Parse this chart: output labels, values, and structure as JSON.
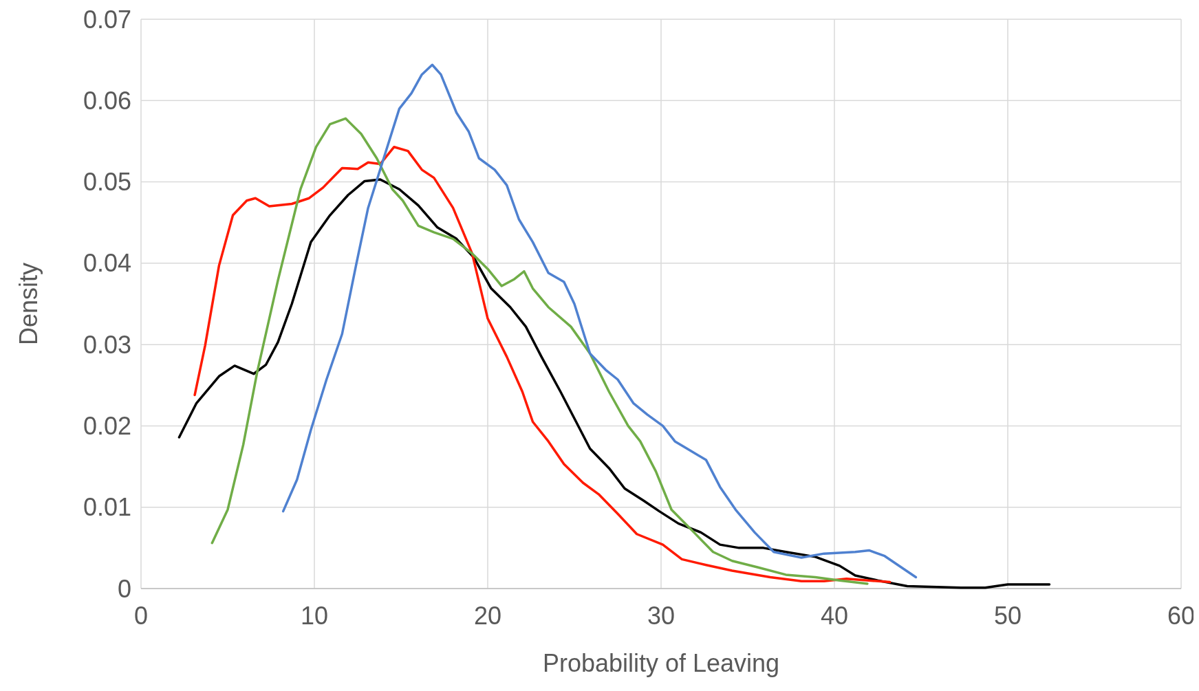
{
  "chart_data": {
    "type": "line",
    "xlabel": "Probability of Leaving",
    "ylabel": "Density",
    "xlim": [
      0,
      60
    ],
    "xticks": [
      0,
      10,
      20,
      30,
      40,
      50,
      60
    ],
    "ylim": [
      0,
      0.07
    ],
    "yticks": [
      0,
      0.01,
      0.02,
      0.03,
      0.04,
      0.05,
      0.06,
      0.07
    ],
    "grid": true,
    "marker": "none",
    "line_style": "solid",
    "series": [
      {
        "color": "#000000",
        "x": [
          2.2,
          3.2,
          4.5,
          5.4,
          6.5,
          7.2,
          7.9,
          8.7,
          9.8,
          10.9,
          11.95,
          12.9,
          13.8,
          14.9,
          16.0,
          17.1,
          18.2,
          19.2,
          20.2,
          21.3,
          22.2,
          23.1,
          24.2,
          25.1,
          25.9,
          27.0,
          27.9,
          29.0,
          29.9,
          31.0,
          32.3,
          33.4,
          34.5,
          35.9,
          37.2,
          38.9,
          40.3,
          41.2,
          42.5,
          44.2,
          47.3,
          48.7,
          50.0,
          52.4
        ],
        "values": [
          0.0186,
          0.0228,
          0.0261,
          0.0274,
          0.0264,
          0.0275,
          0.0303,
          0.035,
          0.0426,
          0.0459,
          0.0484,
          0.0501,
          0.0503,
          0.0491,
          0.0471,
          0.0444,
          0.043,
          0.0407,
          0.0369,
          0.0346,
          0.0322,
          0.0285,
          0.0242,
          0.0205,
          0.0172,
          0.0148,
          0.0123,
          0.0108,
          0.0095,
          0.008,
          0.0069,
          0.0054,
          0.005,
          0.005,
          0.0045,
          0.0039,
          0.0028,
          0.0016,
          0.001,
          0.0003,
          0.0001,
          0.0001,
          0.0005,
          0.0005
        ]
      },
      {
        "color": "#ff1a00",
        "x": [
          3.1,
          3.7,
          4.5,
          5.3,
          6.1,
          6.6,
          7.4,
          8.7,
          9.7,
          10.5,
          11.6,
          12.5,
          13.1,
          13.8,
          14.6,
          15.4,
          16.2,
          16.9,
          18.0,
          19.1,
          20.0,
          21.1,
          22.0,
          22.6,
          23.5,
          24.4,
          25.5,
          26.4,
          27.5,
          28.6,
          30.1,
          31.2,
          32.6,
          34.1,
          36.3,
          38.1,
          39.4,
          40.7,
          43.2
        ],
        "values": [
          0.0238,
          0.0299,
          0.0397,
          0.0459,
          0.0477,
          0.048,
          0.047,
          0.0473,
          0.048,
          0.0493,
          0.0517,
          0.0516,
          0.0524,
          0.0522,
          0.0543,
          0.0538,
          0.0515,
          0.0505,
          0.0468,
          0.0412,
          0.0332,
          0.0285,
          0.0242,
          0.0205,
          0.0181,
          0.0153,
          0.013,
          0.0116,
          0.0092,
          0.0067,
          0.0054,
          0.0036,
          0.0029,
          0.0022,
          0.0014,
          0.0009,
          0.0009,
          0.0012,
          0.0008
        ]
      },
      {
        "color": "#70ad47",
        "x": [
          4.1,
          5.0,
          5.9,
          6.7,
          7.9,
          9.2,
          10.1,
          10.9,
          11.8,
          12.7,
          13.6,
          14.5,
          15.1,
          16.0,
          16.9,
          18.0,
          19.1,
          20.0,
          20.8,
          21.5,
          22.1,
          22.6,
          23.5,
          24.8,
          25.9,
          27.0,
          28.1,
          28.8,
          29.7,
          30.6,
          31.9,
          33.0,
          34.1,
          35.6,
          37.2,
          38.9,
          40.3,
          41.9
        ],
        "values": [
          0.0056,
          0.0097,
          0.0177,
          0.0266,
          0.0379,
          0.0491,
          0.0543,
          0.0571,
          0.0578,
          0.0559,
          0.0529,
          0.0491,
          0.0477,
          0.0446,
          0.0438,
          0.043,
          0.0412,
          0.0393,
          0.0372,
          0.038,
          0.039,
          0.0369,
          0.0346,
          0.0322,
          0.0289,
          0.0242,
          0.02,
          0.0181,
          0.0144,
          0.0097,
          0.0069,
          0.0045,
          0.0034,
          0.0026,
          0.0017,
          0.0014,
          0.001,
          0.0006
        ]
      },
      {
        "color": "#4f81d0",
        "x": [
          8.2,
          9.0,
          9.8,
          10.7,
          11.6,
          12.4,
          13.1,
          14.0,
          14.9,
          15.6,
          16.2,
          16.8,
          17.3,
          18.2,
          18.9,
          19.5,
          20.4,
          21.1,
          21.8,
          22.6,
          23.5,
          24.4,
          25.0,
          25.9,
          26.8,
          27.5,
          28.4,
          29.2,
          30.1,
          30.8,
          31.5,
          32.6,
          33.4,
          34.3,
          35.4,
          36.5,
          38.1,
          39.4,
          41.2,
          42.0,
          42.9,
          44.7
        ],
        "values": [
          0.0095,
          0.0134,
          0.0195,
          0.0257,
          0.0313,
          0.0397,
          0.0468,
          0.0529,
          0.059,
          0.0609,
          0.0632,
          0.0644,
          0.0632,
          0.0585,
          0.0562,
          0.0529,
          0.0515,
          0.0496,
          0.0454,
          0.0426,
          0.0388,
          0.0377,
          0.035,
          0.0289,
          0.0269,
          0.0257,
          0.0228,
          0.0214,
          0.02,
          0.0181,
          0.0172,
          0.0158,
          0.0125,
          0.0097,
          0.0069,
          0.0045,
          0.0038,
          0.0043,
          0.0045,
          0.0047,
          0.004,
          0.0014
        ]
      }
    ]
  }
}
